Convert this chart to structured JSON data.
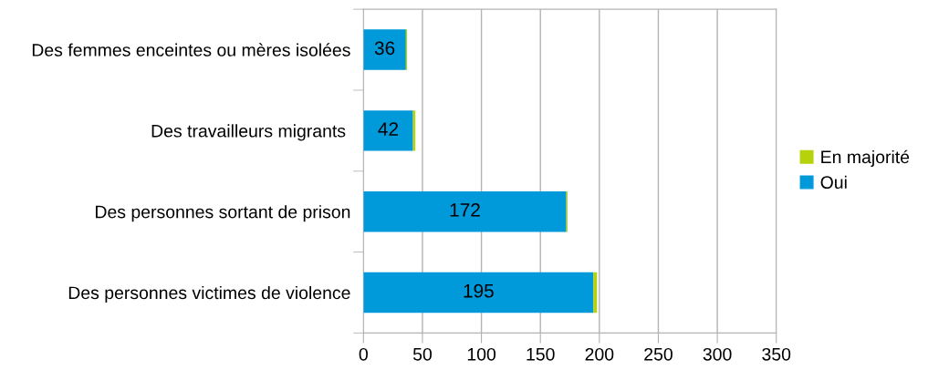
{
  "chart_data": {
    "type": "bar",
    "orientation": "horizontal",
    "stacked": true,
    "categories": [
      "Des femmes enceintes ou mères isolées",
      "Des travailleurs migrants ",
      "Des personnes sortant de prison",
      "Des personnes victimes de violence"
    ],
    "series": [
      {
        "name": "Oui",
        "color": "#0099d9",
        "values": [
          36,
          42,
          172,
          195
        ],
        "value_labels": [
          "36",
          "42",
          "172",
          "195"
        ]
      },
      {
        "name": "En majorité",
        "color": "#b5d20a",
        "values": [
          1,
          2,
          1,
          3
        ]
      }
    ],
    "xlim": [
      0,
      350
    ],
    "xticks": [
      0,
      50,
      100,
      150,
      200,
      250,
      300,
      350
    ],
    "grid": "x",
    "legend": "right"
  }
}
